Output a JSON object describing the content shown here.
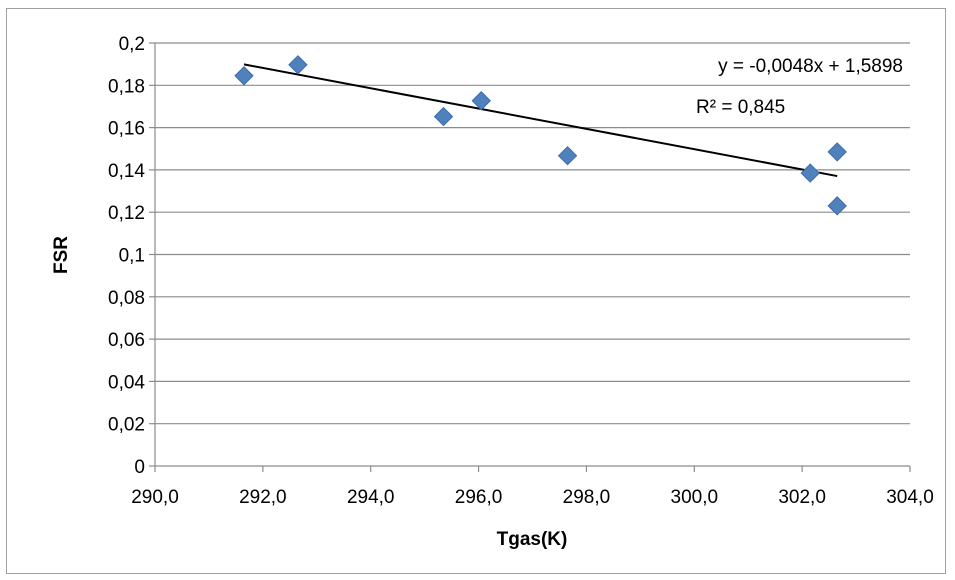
{
  "chart_data": {
    "type": "scatter",
    "title": "",
    "xlabel": "Tgas(K)",
    "ylabel": "FSR",
    "xlim": [
      290,
      304
    ],
    "ylim": [
      0,
      0.2
    ],
    "xticks": [
      290,
      292,
      294,
      296,
      298,
      300,
      302,
      304
    ],
    "xtick_labels": [
      "290,0",
      "292,0",
      "294,0",
      "296,0",
      "298,0",
      "300,0",
      "302,0",
      "304,0"
    ],
    "yticks": [
      0,
      0.02,
      0.04,
      0.06,
      0.08,
      0.1,
      0.12,
      0.14,
      0.16,
      0.18,
      0.2
    ],
    "ytick_labels": [
      "0",
      "0,02",
      "0,04",
      "0,06",
      "0,08",
      "0,1",
      "0,12",
      "0,14",
      "0,16",
      "0,18",
      "0,2"
    ],
    "grid": "horizontal",
    "legend": "none",
    "marker_color": "#4f81bd",
    "trendline_color": "#000000",
    "series": [
      {
        "x": [
          291.65,
          292.65,
          295.35,
          296.05,
          297.65,
          302.15,
          302.65,
          302.65
        ],
        "y": [
          0.1845,
          0.1897,
          0.1652,
          0.1727,
          0.1467,
          0.1385,
          0.1485,
          0.123
        ]
      }
    ],
    "trendline": {
      "type": "linear",
      "slope": -0.0048,
      "intercept": 1.5898,
      "x_range": [
        291.65,
        302.65
      ],
      "equation_label": "y = -0,0048x + 1,5898",
      "r2_label": "R² = 0,845"
    }
  }
}
